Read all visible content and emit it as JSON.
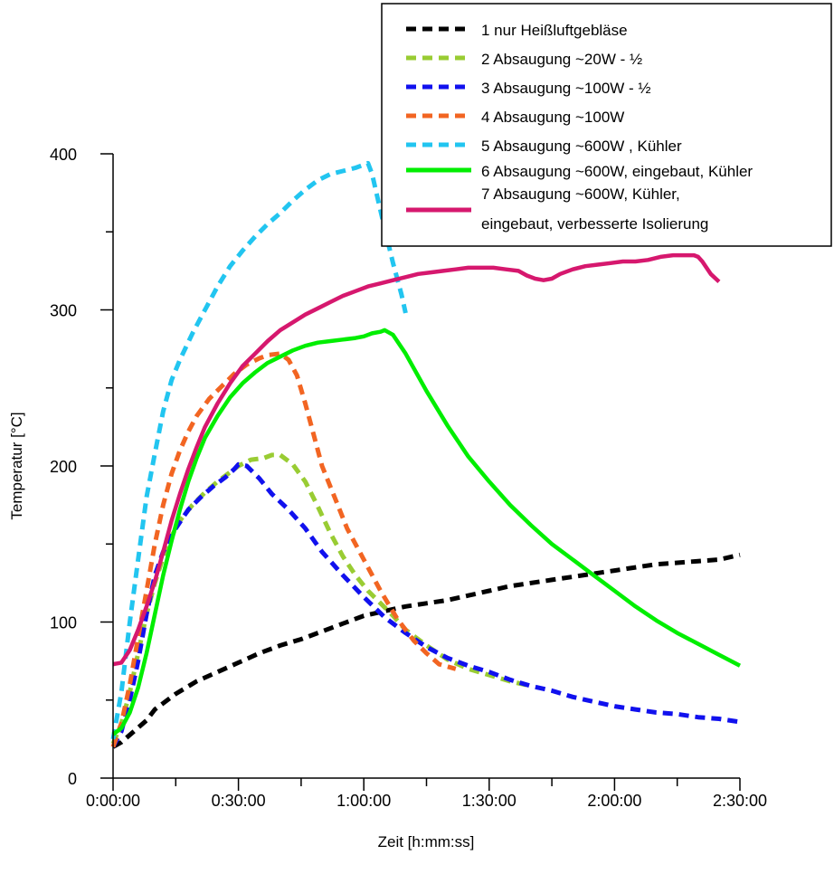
{
  "chart_data": {
    "type": "line",
    "xlabel": "Zeit [h:mm:ss]",
    "ylabel": "Temperatur [°C]",
    "x_unit": "minutes",
    "xlim": [
      0,
      150
    ],
    "ylim": [
      0,
      400
    ],
    "x_tick_labels": [
      {
        "value": 0,
        "label": "0:00:00"
      },
      {
        "value": 30,
        "label": "0:30:00"
      },
      {
        "value": 60,
        "label": "1:00:00"
      },
      {
        "value": 90,
        "label": "1:30:00"
      },
      {
        "value": 120,
        "label": "2:00:00"
      },
      {
        "value": 150,
        "label": "2:30:00"
      }
    ],
    "x_minor_ticks": [
      15,
      45,
      75,
      105,
      135
    ],
    "y_tick_labels": [
      {
        "value": 0,
        "label": "0"
      },
      {
        "value": 100,
        "label": "100"
      },
      {
        "value": 200,
        "label": "200"
      },
      {
        "value": 300,
        "label": "300"
      },
      {
        "value": 400,
        "label": "400"
      }
    ],
    "y_minor_ticks": [
      50,
      150,
      250,
      350
    ],
    "grid": false,
    "legend_position": "top-right",
    "series": [
      {
        "name": "1 nur Heißluftgebläse",
        "color": "#000000",
        "style": "dashed",
        "points": [
          [
            0,
            20
          ],
          [
            2,
            23
          ],
          [
            5,
            30
          ],
          [
            8,
            37
          ],
          [
            10,
            44
          ],
          [
            15,
            54
          ],
          [
            20,
            62
          ],
          [
            25,
            68
          ],
          [
            30,
            74
          ],
          [
            35,
            80
          ],
          [
            40,
            85
          ],
          [
            45,
            89
          ],
          [
            50,
            94
          ],
          [
            55,
            99
          ],
          [
            60,
            104
          ],
          [
            65,
            107
          ],
          [
            70,
            110
          ],
          [
            75,
            112
          ],
          [
            80,
            114
          ],
          [
            85,
            117
          ],
          [
            90,
            120
          ],
          [
            95,
            123
          ],
          [
            100,
            125
          ],
          [
            105,
            127
          ],
          [
            110,
            129
          ],
          [
            115,
            131
          ],
          [
            120,
            133
          ],
          [
            125,
            135
          ],
          [
            130,
            137
          ],
          [
            135,
            138
          ],
          [
            140,
            139
          ],
          [
            145,
            140
          ],
          [
            150,
            143
          ]
        ]
      },
      {
        "name": "2 Absaugung ~20W - ½",
        "color": "#99cc33",
        "style": "dashed",
        "points": [
          [
            0,
            22
          ],
          [
            2,
            35
          ],
          [
            4,
            55
          ],
          [
            6,
            80
          ],
          [
            8,
            105
          ],
          [
            10,
            125
          ],
          [
            13,
            150
          ],
          [
            16,
            165
          ],
          [
            19,
            175
          ],
          [
            22,
            183
          ],
          [
            25,
            190
          ],
          [
            28,
            196
          ],
          [
            30,
            200
          ],
          [
            33,
            204
          ],
          [
            36,
            205
          ],
          [
            38,
            207
          ],
          [
            40,
            207
          ],
          [
            43,
            201
          ],
          [
            46,
            190
          ],
          [
            49,
            174
          ],
          [
            52,
            157
          ],
          [
            55,
            142
          ],
          [
            58,
            130
          ],
          [
            61,
            120
          ],
          [
            64,
            112
          ],
          [
            67,
            104
          ],
          [
            70,
            95
          ],
          [
            75,
            85
          ],
          [
            80,
            76
          ],
          [
            85,
            70
          ],
          [
            90,
            66
          ],
          [
            95,
            62
          ],
          [
            100,
            59
          ]
        ]
      },
      {
        "name": "3 Absaugung ~100W - ½",
        "color": "#1111ee",
        "style": "dashed",
        "points": [
          [
            0,
            20
          ],
          [
            2,
            30
          ],
          [
            4,
            50
          ],
          [
            6,
            75
          ],
          [
            8,
            105
          ],
          [
            10,
            130
          ],
          [
            12,
            145
          ],
          [
            15,
            160
          ],
          [
            18,
            172
          ],
          [
            21,
            180
          ],
          [
            24,
            187
          ],
          [
            27,
            193
          ],
          [
            29,
            198
          ],
          [
            30,
            201
          ],
          [
            32,
            200
          ],
          [
            35,
            192
          ],
          [
            38,
            182
          ],
          [
            42,
            172
          ],
          [
            46,
            160
          ],
          [
            50,
            145
          ],
          [
            55,
            130
          ],
          [
            60,
            116
          ],
          [
            65,
            103
          ],
          [
            70,
            93
          ],
          [
            75,
            84
          ],
          [
            80,
            77
          ],
          [
            85,
            72
          ],
          [
            90,
            68
          ],
          [
            95,
            63
          ],
          [
            100,
            59
          ],
          [
            105,
            56
          ],
          [
            110,
            52
          ],
          [
            115,
            49
          ],
          [
            120,
            46
          ],
          [
            125,
            44
          ],
          [
            130,
            42
          ],
          [
            135,
            41
          ],
          [
            140,
            39
          ],
          [
            145,
            38
          ],
          [
            150,
            36
          ]
        ]
      },
      {
        "name": "4 Absaugung ~100W",
        "color": "#f26522",
        "style": "dashed",
        "points": [
          [
            0,
            20
          ],
          [
            2,
            35
          ],
          [
            4,
            60
          ],
          [
            6,
            90
          ],
          [
            8,
            120
          ],
          [
            10,
            150
          ],
          [
            12,
            175
          ],
          [
            14,
            195
          ],
          [
            16,
            210
          ],
          [
            18,
            222
          ],
          [
            20,
            232
          ],
          [
            23,
            243
          ],
          [
            26,
            251
          ],
          [
            29,
            259
          ],
          [
            32,
            265
          ],
          [
            35,
            269
          ],
          [
            37,
            271
          ],
          [
            40,
            272
          ],
          [
            42,
            268
          ],
          [
            44,
            258
          ],
          [
            46,
            240
          ],
          [
            48,
            220
          ],
          [
            50,
            200
          ],
          [
            53,
            180
          ],
          [
            56,
            160
          ],
          [
            60,
            140
          ],
          [
            64,
            120
          ],
          [
            68,
            102
          ],
          [
            72,
            88
          ],
          [
            75,
            80
          ],
          [
            78,
            73
          ],
          [
            82,
            70
          ]
        ]
      },
      {
        "name": "5 Absaugung ~600W , Kühler",
        "color": "#22c5f0",
        "style": "dashed",
        "points": [
          [
            0,
            25
          ],
          [
            2,
            55
          ],
          [
            4,
            100
          ],
          [
            6,
            140
          ],
          [
            8,
            180
          ],
          [
            10,
            208
          ],
          [
            12,
            235
          ],
          [
            14,
            255
          ],
          [
            16,
            268
          ],
          [
            19,
            285
          ],
          [
            22,
            300
          ],
          [
            25,
            315
          ],
          [
            28,
            328
          ],
          [
            31,
            338
          ],
          [
            34,
            347
          ],
          [
            37,
            355
          ],
          [
            40,
            362
          ],
          [
            43,
            370
          ],
          [
            46,
            377
          ],
          [
            49,
            383
          ],
          [
            52,
            387
          ],
          [
            55,
            389
          ],
          [
            58,
            391
          ],
          [
            60,
            393
          ],
          [
            61,
            394
          ],
          [
            62,
            387
          ],
          [
            63,
            375
          ],
          [
            65,
            352
          ],
          [
            67,
            330
          ],
          [
            69,
            310
          ],
          [
            70,
            298
          ]
        ]
      },
      {
        "name": "6 Absaugung ~600W, eingebaut, Kühler",
        "color": "#00ee00",
        "style": "solid",
        "points": [
          [
            0,
            28
          ],
          [
            2,
            32
          ],
          [
            4,
            42
          ],
          [
            6,
            58
          ],
          [
            8,
            80
          ],
          [
            10,
            105
          ],
          [
            12,
            130
          ],
          [
            14,
            152
          ],
          [
            16,
            172
          ],
          [
            18,
            190
          ],
          [
            20,
            205
          ],
          [
            22,
            218
          ],
          [
            25,
            232
          ],
          [
            28,
            244
          ],
          [
            31,
            253
          ],
          [
            34,
            260
          ],
          [
            37,
            266
          ],
          [
            40,
            270
          ],
          [
            43,
            274
          ],
          [
            46,
            277
          ],
          [
            49,
            279
          ],
          [
            52,
            280
          ],
          [
            55,
            281
          ],
          [
            58,
            282
          ],
          [
            60,
            283
          ],
          [
            62,
            285
          ],
          [
            64,
            286
          ],
          [
            65,
            287
          ],
          [
            67,
            284
          ],
          [
            70,
            272
          ],
          [
            75,
            248
          ],
          [
            80,
            226
          ],
          [
            85,
            206
          ],
          [
            90,
            190
          ],
          [
            95,
            175
          ],
          [
            100,
            162
          ],
          [
            105,
            150
          ],
          [
            110,
            140
          ],
          [
            115,
            130
          ],
          [
            120,
            120
          ],
          [
            125,
            110
          ],
          [
            130,
            101
          ],
          [
            135,
            93
          ],
          [
            140,
            86
          ],
          [
            145,
            79
          ],
          [
            150,
            72
          ]
        ]
      },
      {
        "name": "7 Absaugung ~600W, Kühler, eingebaut, verbesserte Isolierung",
        "color": "#d6186e",
        "style": "solid",
        "points": [
          [
            0,
            73
          ],
          [
            2,
            74
          ],
          [
            4,
            82
          ],
          [
            6,
            95
          ],
          [
            8,
            110
          ],
          [
            10,
            126
          ],
          [
            12,
            145
          ],
          [
            14,
            165
          ],
          [
            16,
            182
          ],
          [
            18,
            198
          ],
          [
            20,
            212
          ],
          [
            22,
            225
          ],
          [
            25,
            240
          ],
          [
            28,
            253
          ],
          [
            31,
            264
          ],
          [
            34,
            272
          ],
          [
            37,
            280
          ],
          [
            40,
            287
          ],
          [
            43,
            292
          ],
          [
            46,
            297
          ],
          [
            49,
            301
          ],
          [
            52,
            305
          ],
          [
            55,
            309
          ],
          [
            58,
            312
          ],
          [
            61,
            315
          ],
          [
            64,
            317
          ],
          [
            67,
            319
          ],
          [
            70,
            321
          ],
          [
            73,
            323
          ],
          [
            76,
            324
          ],
          [
            79,
            325
          ],
          [
            82,
            326
          ],
          [
            85,
            327
          ],
          [
            88,
            327
          ],
          [
            91,
            327
          ],
          [
            94,
            326
          ],
          [
            97,
            325
          ],
          [
            99,
            322
          ],
          [
            101,
            320
          ],
          [
            103,
            319
          ],
          [
            105,
            320
          ],
          [
            107,
            323
          ],
          [
            110,
            326
          ],
          [
            113,
            328
          ],
          [
            116,
            329
          ],
          [
            119,
            330
          ],
          [
            122,
            331
          ],
          [
            125,
            331
          ],
          [
            128,
            332
          ],
          [
            131,
            334
          ],
          [
            134,
            335
          ],
          [
            137,
            335
          ],
          [
            139,
            335
          ],
          [
            140,
            334
          ],
          [
            141,
            331
          ],
          [
            143,
            323
          ],
          [
            145,
            318
          ]
        ]
      }
    ]
  }
}
